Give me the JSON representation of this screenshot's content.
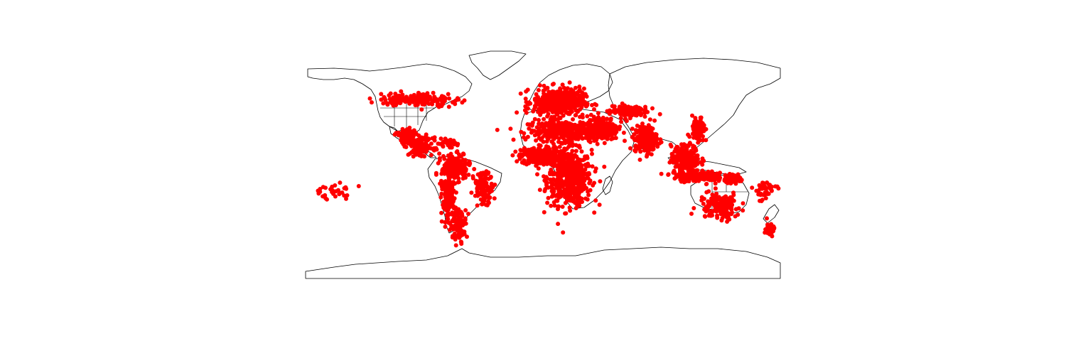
{
  "map": {
    "projection": "equirectangular",
    "lon_range": [
      -180,
      180
    ],
    "lat_range": [
      -90,
      90
    ],
    "point_color": "#ff0000",
    "outline_color": "#000000",
    "background": "#ffffff"
  },
  "point_clusters": [
    {
      "region": "sub-saharan-africa",
      "lon": 20,
      "lat": -5,
      "spread_lon": 14,
      "spread_lat": 16,
      "count": 600
    },
    {
      "region": "west-africa",
      "lon": -2,
      "lat": 10,
      "spread_lon": 12,
      "spread_lat": 5,
      "count": 300
    },
    {
      "region": "north-africa",
      "lon": 15,
      "lat": 28,
      "spread_lon": 22,
      "spread_lat": 6,
      "count": 350
    },
    {
      "region": "europe",
      "lon": 12,
      "lat": 48,
      "spread_lon": 16,
      "spread_lat": 8,
      "count": 450
    },
    {
      "region": "middle-east",
      "lon": 45,
      "lat": 30,
      "spread_lon": 10,
      "spread_lat": 7,
      "count": 250
    },
    {
      "region": "south-asia",
      "lon": 78,
      "lat": 22,
      "spread_lon": 7,
      "spread_lat": 8,
      "count": 200
    },
    {
      "region": "central-asia",
      "lon": 65,
      "lat": 42,
      "spread_lon": 12,
      "spread_lat": 4,
      "count": 120
    },
    {
      "region": "southeast-asia",
      "lon": 108,
      "lat": 8,
      "spread_lon": 9,
      "spread_lat": 8,
      "count": 220
    },
    {
      "region": "indonesia",
      "lon": 118,
      "lat": -4,
      "spread_lon": 16,
      "spread_lat": 3,
      "count": 200
    },
    {
      "region": "east-asia-coast",
      "lon": 118,
      "lat": 28,
      "spread_lon": 4,
      "spread_lat": 8,
      "count": 90
    },
    {
      "region": "new-guinea",
      "lon": 145,
      "lat": -6,
      "spread_lon": 6,
      "spread_lat": 2,
      "count": 80
    },
    {
      "region": "australia",
      "lon": 134,
      "lat": -25,
      "spread_lon": 13,
      "spread_lat": 8,
      "count": 160
    },
    {
      "region": "central-america",
      "lon": -92,
      "lat": 17,
      "spread_lon": 7,
      "spread_lat": 5,
      "count": 150
    },
    {
      "region": "mexico",
      "lon": -104,
      "lat": 24,
      "spread_lon": 6,
      "spread_lat": 5,
      "count": 80
    },
    {
      "region": "northern-south-america",
      "lon": -66,
      "lat": 2,
      "spread_lon": 9,
      "spread_lat": 7,
      "count": 200
    },
    {
      "region": "andes",
      "lon": -72,
      "lat": -20,
      "spread_lon": 4,
      "spread_lat": 15,
      "count": 150
    },
    {
      "region": "brazil",
      "lon": -45,
      "lat": -12,
      "spread_lon": 6,
      "spread_lat": 9,
      "count": 120
    },
    {
      "region": "southern-cone",
      "lon": -64,
      "lat": -38,
      "spread_lon": 5,
      "spread_lat": 9,
      "count": 100
    },
    {
      "region": "canada-south",
      "lon": -95,
      "lat": 50,
      "spread_lon": 25,
      "spread_lat": 4,
      "count": 160
    },
    {
      "region": "new-zealand",
      "lon": 172,
      "lat": -41,
      "spread_lon": 3,
      "spread_lat": 4,
      "count": 40
    },
    {
      "region": "pacific-islands",
      "lon": 168,
      "lat": -14,
      "spread_lon": 8,
      "spread_lat": 6,
      "count": 40
    },
    {
      "region": "hawaii-polynesia",
      "lon": -160,
      "lat": -15,
      "spread_lon": 14,
      "spread_lat": 5,
      "count": 30
    },
    {
      "region": "caribbean",
      "lon": -72,
      "lat": 19,
      "spread_lon": 6,
      "spread_lat": 2,
      "count": 50
    }
  ]
}
